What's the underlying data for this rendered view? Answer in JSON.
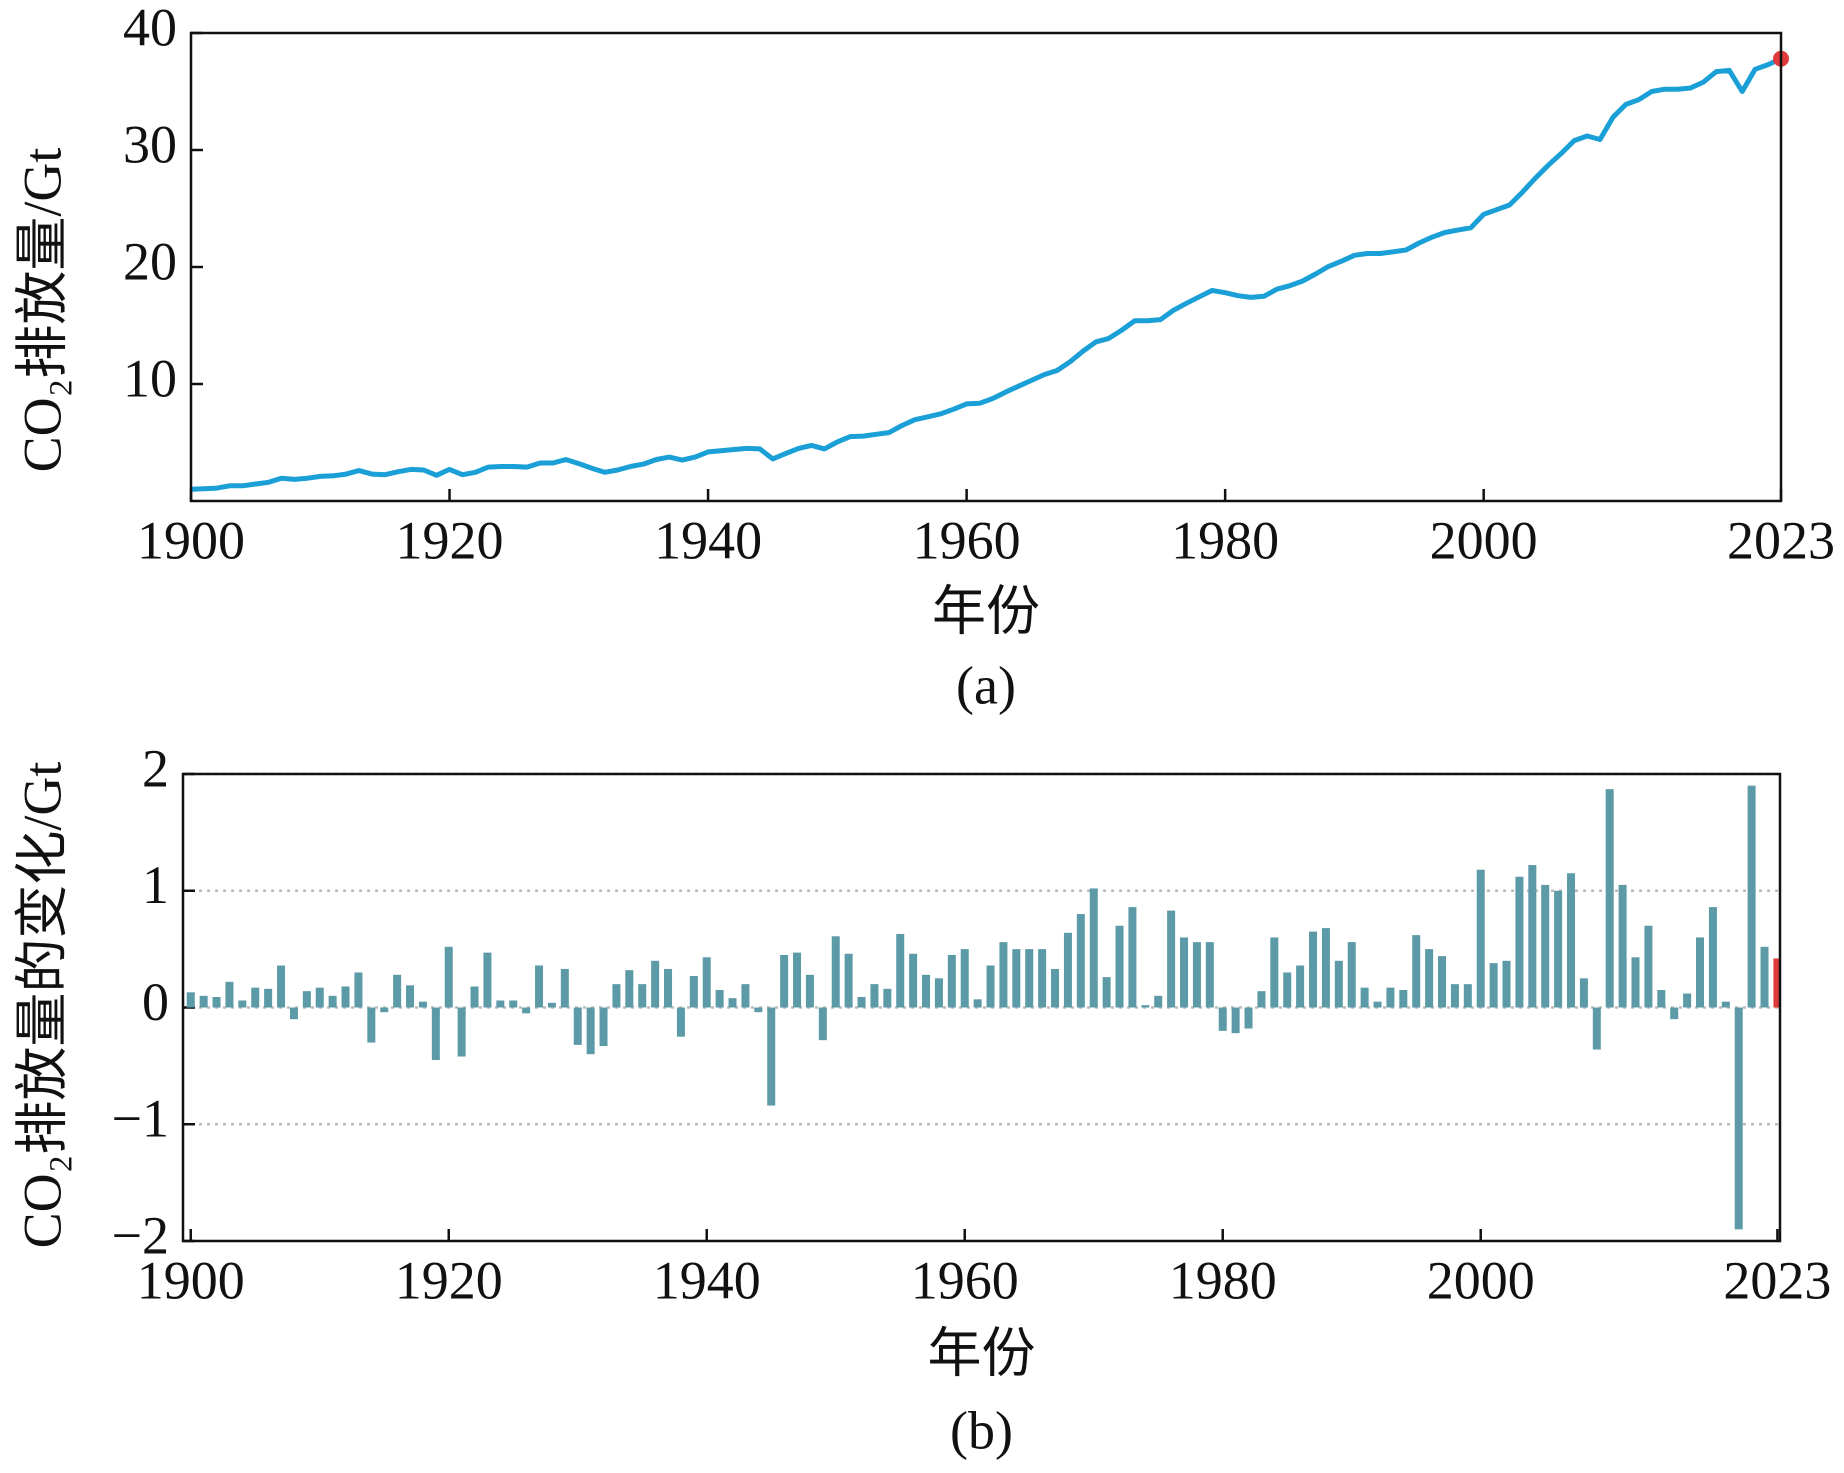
{
  "chart_data": [
    {
      "type": "line",
      "xlabel": "年份",
      "ylabel": "CO₂排放量/Gt",
      "caption": "(a)",
      "x": [
        1900,
        1901,
        1902,
        1903,
        1904,
        1905,
        1906,
        1907,
        1908,
        1909,
        1910,
        1911,
        1912,
        1913,
        1914,
        1915,
        1916,
        1917,
        1918,
        1919,
        1920,
        1921,
        1922,
        1923,
        1924,
        1925,
        1926,
        1927,
        1928,
        1929,
        1930,
        1931,
        1932,
        1933,
        1934,
        1935,
        1936,
        1937,
        1938,
        1939,
        1940,
        1941,
        1942,
        1943,
        1944,
        1945,
        1946,
        1947,
        1948,
        1949,
        1950,
        1951,
        1952,
        1953,
        1954,
        1955,
        1956,
        1957,
        1958,
        1959,
        1960,
        1961,
        1962,
        1963,
        1964,
        1965,
        1966,
        1967,
        1968,
        1969,
        1970,
        1971,
        1972,
        1973,
        1974,
        1975,
        1976,
        1977,
        1978,
        1979,
        1980,
        1981,
        1982,
        1983,
        1984,
        1985,
        1986,
        1987,
        1988,
        1989,
        1990,
        1991,
        1992,
        1993,
        1994,
        1995,
        1996,
        1997,
        1998,
        1999,
        2000,
        2001,
        2002,
        2003,
        2004,
        2005,
        2006,
        2007,
        2008,
        2009,
        2010,
        2011,
        2012,
        2013,
        2014,
        2015,
        2016,
        2017,
        2018,
        2019,
        2020,
        2021,
        2022,
        2023
      ],
      "series": [
        {
          "color": "#1a9fd6",
          "values": [
            1.0,
            1.05,
            1.1,
            1.3,
            1.3,
            1.45,
            1.6,
            1.95,
            1.85,
            1.95,
            2.1,
            2.15,
            2.3,
            2.6,
            2.3,
            2.25,
            2.5,
            2.7,
            2.65,
            2.2,
            2.7,
            2.25,
            2.45,
            2.9,
            2.95,
            2.95,
            2.9,
            3.25,
            3.25,
            3.55,
            3.2,
            2.8,
            2.45,
            2.65,
            2.95,
            3.15,
            3.55,
            3.75,
            3.5,
            3.75,
            4.2,
            4.3,
            4.4,
            4.5,
            4.45,
            3.6,
            4.05,
            4.5,
            4.75,
            4.45,
            5.05,
            5.5,
            5.55,
            5.7,
            5.85,
            6.45,
            6.95,
            7.2,
            7.45,
            7.85,
            8.3,
            8.35,
            8.75,
            9.3,
            9.8,
            10.3,
            10.8,
            11.15,
            11.9,
            12.8,
            13.6,
            13.9,
            14.6,
            15.4,
            15.4,
            15.5,
            16.3,
            16.9,
            17.45,
            18.0,
            17.8,
            17.55,
            17.4,
            17.5,
            18.1,
            18.4,
            18.8,
            19.4,
            20.05,
            20.5,
            21.0,
            21.15,
            21.15,
            21.3,
            21.45,
            22.05,
            22.55,
            22.95,
            23.15,
            23.35,
            24.5,
            24.9,
            25.3,
            26.4,
            27.6,
            28.7,
            29.7,
            30.8,
            31.2,
            30.9,
            32.8,
            33.9,
            34.3,
            35.0,
            35.2,
            35.2,
            35.3,
            35.8,
            36.7,
            36.8,
            35.0,
            36.9,
            37.3,
            37.8
          ]
        }
      ],
      "marker_color": "#e03a3a",
      "xlim": [
        1900,
        2023
      ],
      "xticks": [
        1900,
        1920,
        1940,
        1960,
        1980,
        2000,
        2023
      ],
      "ylim": [
        0,
        40
      ],
      "yticks": [
        10,
        20,
        30,
        40
      ],
      "grid": false
    },
    {
      "type": "bar",
      "xlabel": "年份",
      "ylabel": "CO₂排放量的变化/Gt",
      "caption": "(b)",
      "x": [
        1900,
        1901,
        1902,
        1903,
        1904,
        1905,
        1906,
        1907,
        1908,
        1909,
        1910,
        1911,
        1912,
        1913,
        1914,
        1915,
        1916,
        1917,
        1918,
        1919,
        1920,
        1921,
        1922,
        1923,
        1924,
        1925,
        1926,
        1927,
        1928,
        1929,
        1930,
        1931,
        1932,
        1933,
        1934,
        1935,
        1936,
        1937,
        1938,
        1939,
        1940,
        1941,
        1942,
        1943,
        1944,
        1945,
        1946,
        1947,
        1948,
        1949,
        1950,
        1951,
        1952,
        1953,
        1954,
        1955,
        1956,
        1957,
        1958,
        1959,
        1960,
        1961,
        1962,
        1963,
        1964,
        1965,
        1966,
        1967,
        1968,
        1969,
        1970,
        1971,
        1972,
        1973,
        1974,
        1975,
        1976,
        1977,
        1978,
        1979,
        1980,
        1981,
        1982,
        1983,
        1984,
        1985,
        1986,
        1987,
        1988,
        1989,
        1990,
        1991,
        1992,
        1993,
        1994,
        1995,
        1996,
        1997,
        1998,
        1999,
        2000,
        2001,
        2002,
        2003,
        2004,
        2005,
        2006,
        2007,
        2008,
        2009,
        2010,
        2011,
        2012,
        2013,
        2014,
        2015,
        2016,
        2017,
        2018,
        2019,
        2020,
        2021,
        2022,
        2023
      ],
      "series": [
        {
          "color": "#5b9aa6",
          "values": [
            0.13,
            0.1,
            0.09,
            0.22,
            0.06,
            0.17,
            0.16,
            0.36,
            -0.1,
            0.14,
            0.17,
            0.1,
            0.18,
            0.3,
            -0.3,
            -0.04,
            0.28,
            0.19,
            0.05,
            -0.45,
            0.52,
            -0.42,
            0.18,
            0.47,
            0.06,
            0.06,
            -0.05,
            0.36,
            0.04,
            0.33,
            -0.32,
            -0.4,
            -0.33,
            0.2,
            0.32,
            0.2,
            0.4,
            0.33,
            -0.25,
            0.27,
            0.43,
            0.15,
            0.08,
            0.2,
            -0.04,
            -0.84,
            0.45,
            0.47,
            0.28,
            -0.28,
            0.61,
            0.46,
            0.09,
            0.2,
            0.16,
            0.63,
            0.46,
            0.28,
            0.25,
            0.45,
            0.5,
            0.07,
            0.36,
            0.56,
            0.5,
            0.5,
            0.5,
            0.33,
            0.64,
            0.8,
            1.02,
            0.26,
            0.7,
            0.86,
            0.02,
            0.1,
            0.83,
            0.6,
            0.56,
            0.56,
            -0.2,
            -0.22,
            -0.18,
            0.14,
            0.6,
            0.3,
            0.36,
            0.65,
            0.68,
            0.4,
            0.56,
            0.17,
            0.05,
            0.17,
            0.15,
            0.62,
            0.5,
            0.44,
            0.2,
            0.2,
            1.18,
            0.38,
            0.4,
            1.12,
            1.22,
            1.05,
            1.0,
            1.15,
            0.25,
            -0.36,
            1.87,
            1.05,
            0.43,
            0.7,
            0.15,
            -0.1,
            0.12,
            0.6,
            0.86,
            0.05,
            -1.9,
            1.9,
            0.52,
            0.42
          ]
        }
      ],
      "last_bar_color": "#e03a3a",
      "xlim": [
        1899.4,
        2023.2
      ],
      "xticks": [
        1900,
        1920,
        1940,
        1960,
        1980,
        2000,
        2023
      ],
      "ylim": [
        -2,
        2
      ],
      "yticks": [
        {
          "value": -2,
          "label": "−2"
        },
        {
          "value": -1,
          "label": "−1"
        },
        0,
        1,
        2
      ],
      "grid": true
    }
  ]
}
